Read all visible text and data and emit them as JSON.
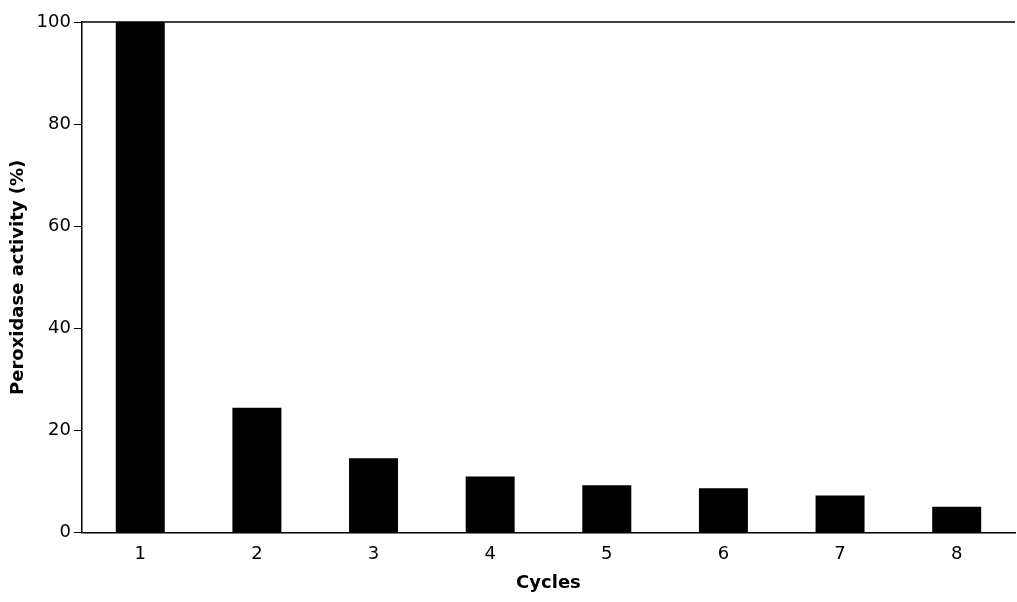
{
  "chart_data": {
    "type": "bar",
    "xlabel": "Cycles",
    "ylabel": "Peroxidase activity (%)",
    "categories": [
      "1",
      "2",
      "3",
      "4",
      "5",
      "6",
      "7",
      "8"
    ],
    "values": [
      100,
      24.5,
      14.6,
      11.0,
      9.3,
      8.7,
      7.3,
      5.1
    ],
    "color": "#000000",
    "ylim": [
      0,
      100
    ],
    "yticks": [
      0,
      20,
      40,
      60,
      80,
      100
    ],
    "grid": false,
    "legend": false
  }
}
